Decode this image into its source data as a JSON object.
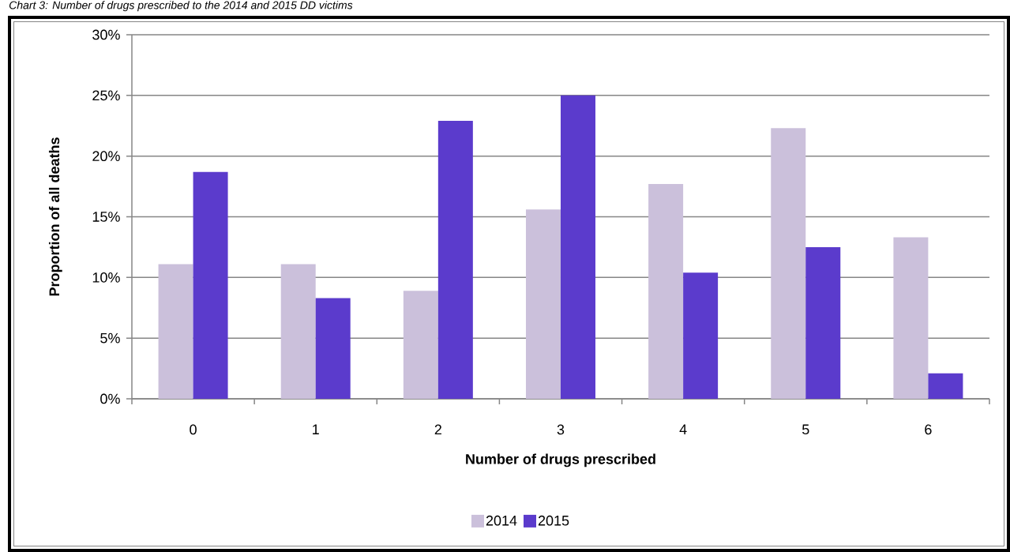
{
  "chart_data": {
    "type": "bar",
    "title": "Chart 3: Number of drugs prescribed to the 2014 and 2015 DD victims",
    "xlabel": "Number of drugs prescribed",
    "ylabel": "Proportion of all deaths",
    "categories": [
      "0",
      "1",
      "2",
      "3",
      "4",
      "5",
      "6"
    ],
    "series": [
      {
        "name": "2014",
        "color": "#cbc0db",
        "values": [
          11.1,
          11.1,
          8.9,
          15.6,
          17.7,
          22.3,
          13.3
        ]
      },
      {
        "name": "2015",
        "color": "#5b3bcc",
        "values": [
          18.7,
          8.3,
          22.9,
          25.0,
          10.4,
          12.5,
          2.1
        ]
      }
    ],
    "ylim": [
      0,
      30
    ],
    "yticks": [
      {
        "value": 0,
        "label": "0%"
      },
      {
        "value": 5,
        "label": "5%"
      },
      {
        "value": 10,
        "label": "10%"
      },
      {
        "value": 15,
        "label": "15%"
      },
      {
        "value": 20,
        "label": "20%"
      },
      {
        "value": 25,
        "label": "25%"
      },
      {
        "value": 30,
        "label": "30%"
      }
    ],
    "grid": "y",
    "legend": "bottom"
  }
}
